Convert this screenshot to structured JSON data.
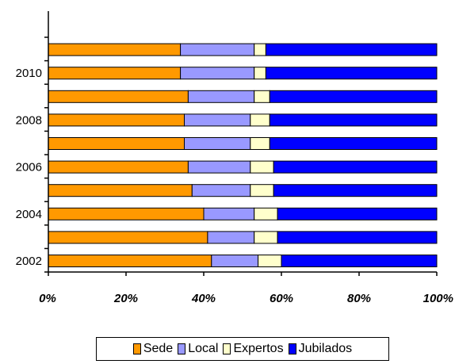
{
  "chart_data": {
    "type": "bar",
    "orientation": "horizontal",
    "stacked": "percent",
    "categories": [
      "2002",
      "",
      "2004",
      "",
      "2006",
      "",
      "2008",
      "",
      "2010",
      ""
    ],
    "series": [
      {
        "name": "Sede",
        "color": "#FF9900",
        "values": [
          42,
          41,
          40,
          37,
          36,
          35,
          35,
          36,
          34,
          34
        ]
      },
      {
        "name": "Local",
        "color": "#9999FF",
        "values": [
          12,
          12,
          13,
          15,
          16,
          17,
          17,
          17,
          19,
          19
        ]
      },
      {
        "name": "Expertos",
        "color": "#FFFFCC",
        "values": [
          6,
          6,
          6,
          6,
          6,
          5,
          5,
          4,
          3,
          3
        ]
      },
      {
        "name": "Jubilados",
        "color": "#0000FF",
        "values": [
          40,
          41,
          41,
          42,
          42,
          43,
          43,
          43,
          44,
          44
        ]
      }
    ],
    "xticks": [
      "0%",
      "20%",
      "40%",
      "60%",
      "80%",
      "100%"
    ],
    "xlim": [
      0,
      100
    ],
    "grid": false,
    "legend": "bottom"
  }
}
